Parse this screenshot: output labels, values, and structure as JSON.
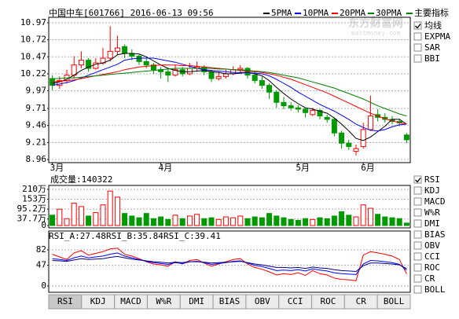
{
  "header": {
    "title": "中国中车[601766] 2016-06-13 09:56",
    "menu": "主要指标",
    "watermark": "东方财富网",
    "watermark_sub": "eastmoney.com"
  },
  "chart_data": [
    {
      "type": "candlestick",
      "up_color": "#ff0000",
      "down_color": "#009900",
      "grid": true,
      "categories": [
        "3月",
        null,
        null,
        null,
        null,
        null,
        null,
        null,
        null,
        null,
        null,
        null,
        null,
        null,
        null,
        "4月",
        null,
        null,
        null,
        null,
        null,
        null,
        null,
        null,
        null,
        null,
        null,
        null,
        null,
        null,
        null,
        null,
        null,
        null,
        "5月",
        null,
        null,
        null,
        null,
        null,
        null,
        null,
        null,
        "6月",
        null,
        null,
        null,
        null,
        null,
        null
      ],
      "ohlc": [
        [
          10.15,
          10.2,
          9.98,
          10.05
        ],
        [
          10.05,
          10.18,
          10.0,
          10.12
        ],
        [
          10.12,
          10.28,
          10.08,
          10.2
        ],
        [
          10.2,
          10.48,
          10.15,
          10.35
        ],
        [
          10.35,
          10.55,
          10.3,
          10.42
        ],
        [
          10.42,
          10.45,
          10.25,
          10.3
        ],
        [
          10.3,
          10.45,
          10.28,
          10.38
        ],
        [
          10.38,
          10.6,
          10.35,
          10.45
        ],
        [
          10.45,
          10.92,
          10.4,
          10.55
        ],
        [
          10.55,
          10.78,
          10.5,
          10.6
        ],
        [
          10.62,
          10.65,
          10.45,
          10.52
        ],
        [
          10.52,
          10.58,
          10.42,
          10.48
        ],
        [
          10.48,
          10.5,
          10.35,
          10.4
        ],
        [
          10.4,
          10.46,
          10.3,
          10.35
        ],
        [
          10.35,
          10.38,
          10.22,
          10.28
        ],
        [
          10.28,
          10.32,
          10.15,
          10.25
        ],
        [
          10.25,
          10.3,
          10.1,
          10.2
        ],
        [
          10.2,
          10.35,
          10.18,
          10.28
        ],
        [
          10.28,
          10.32,
          10.18,
          10.22
        ],
        [
          10.22,
          10.38,
          10.2,
          10.3
        ],
        [
          10.3,
          10.4,
          10.25,
          10.32
        ],
        [
          10.32,
          10.35,
          10.2,
          10.25
        ],
        [
          10.25,
          10.28,
          10.1,
          10.15
        ],
        [
          10.15,
          10.25,
          10.12,
          10.18
        ],
        [
          10.18,
          10.28,
          10.15,
          10.22
        ],
        [
          10.22,
          10.33,
          10.2,
          10.28
        ],
        [
          10.28,
          10.35,
          10.22,
          10.3
        ],
        [
          10.3,
          10.32,
          10.15,
          10.2
        ],
        [
          10.2,
          10.25,
          10.08,
          10.12
        ],
        [
          10.12,
          10.18,
          10.0,
          10.05
        ],
        [
          10.05,
          10.08,
          9.85,
          9.95
        ],
        [
          9.95,
          9.98,
          9.72,
          9.8
        ],
        [
          9.8,
          9.88,
          9.7,
          9.75
        ],
        [
          9.75,
          9.8,
          9.68,
          9.72
        ],
        [
          9.72,
          9.76,
          9.65,
          9.7
        ],
        [
          9.7,
          9.72,
          9.58,
          9.65
        ],
        [
          9.62,
          9.72,
          9.6,
          9.68
        ],
        [
          9.68,
          9.7,
          9.55,
          9.6
        ],
        [
          9.58,
          9.62,
          9.5,
          9.55
        ],
        [
          9.55,
          9.58,
          9.3,
          9.35
        ],
        [
          9.35,
          9.38,
          9.12,
          9.2
        ],
        [
          9.2,
          9.25,
          9.1,
          9.15
        ],
        [
          9.08,
          9.18,
          9.02,
          9.12
        ],
        [
          9.15,
          9.5,
          9.12,
          9.4
        ],
        [
          9.4,
          9.9,
          9.38,
          9.6
        ],
        [
          9.62,
          9.7,
          9.52,
          9.58
        ],
        [
          9.58,
          9.64,
          9.5,
          9.55
        ],
        [
          9.55,
          9.6,
          9.48,
          9.52
        ],
        [
          9.52,
          9.56,
          9.45,
          9.5
        ],
        [
          9.32,
          9.35,
          9.2,
          9.25
        ]
      ],
      "series": [
        {
          "name": "5PMA",
          "color": "#000000",
          "values": [
            10.08,
            10.1,
            10.14,
            10.2,
            10.27,
            10.32,
            10.36,
            10.38,
            10.42,
            10.5,
            10.52,
            10.52,
            10.51,
            10.47,
            10.41,
            10.35,
            10.3,
            10.27,
            10.25,
            10.25,
            10.26,
            10.27,
            10.25,
            10.24,
            10.22,
            10.22,
            10.23,
            10.24,
            10.22,
            10.19,
            10.12,
            10.02,
            9.93,
            9.85,
            9.78,
            9.72,
            9.7,
            9.67,
            9.64,
            9.57,
            9.48,
            9.38,
            9.27,
            9.24,
            9.29,
            9.37,
            9.45,
            9.55,
            9.55,
            9.48
          ]
        },
        {
          "name": "10PMA",
          "color": "#0000ff",
          "values": [
            10.05,
            10.07,
            10.09,
            10.12,
            10.16,
            10.2,
            10.24,
            10.28,
            10.32,
            10.36,
            10.42,
            10.44,
            10.45,
            10.45,
            10.45,
            10.43,
            10.41,
            10.39,
            10.36,
            10.33,
            10.3,
            10.28,
            10.27,
            10.26,
            10.25,
            10.24,
            10.24,
            10.24,
            10.23,
            10.22,
            10.19,
            10.14,
            10.08,
            10.02,
            9.95,
            9.89,
            9.83,
            9.77,
            9.72,
            9.67,
            9.61,
            9.55,
            9.48,
            9.43,
            9.39,
            9.38,
            9.4,
            9.44,
            9.47,
            9.48
          ]
        },
        {
          "name": "20PMA",
          "color": "#ff0000",
          "values": [
            10.1,
            10.11,
            10.12,
            10.13,
            10.15,
            10.17,
            10.19,
            10.21,
            10.23,
            10.25,
            10.28,
            10.3,
            10.32,
            10.33,
            10.34,
            10.35,
            10.35,
            10.35,
            10.34,
            10.34,
            10.33,
            10.32,
            10.31,
            10.3,
            10.29,
            10.28,
            10.27,
            10.26,
            10.25,
            10.24,
            10.22,
            10.2,
            10.17,
            10.14,
            10.1,
            10.06,
            10.02,
            9.98,
            9.94,
            9.89,
            9.84,
            9.79,
            9.74,
            9.69,
            9.64,
            9.6,
            9.56,
            9.53,
            9.5,
            9.48
          ]
        },
        {
          "name": "30PMA",
          "color": "#008000",
          "values": [
            10.15,
            10.15,
            10.16,
            10.16,
            10.17,
            10.18,
            10.19,
            10.2,
            10.21,
            10.22,
            10.23,
            10.24,
            10.25,
            10.26,
            10.27,
            10.28,
            10.29,
            10.3,
            10.3,
            10.3,
            10.3,
            10.3,
            10.3,
            10.29,
            10.29,
            10.28,
            10.28,
            10.27,
            10.26,
            10.25,
            10.24,
            10.22,
            10.2,
            10.18,
            10.16,
            10.13,
            10.1,
            10.07,
            10.04,
            10.01,
            9.97,
            9.93,
            9.89,
            9.85,
            9.8,
            9.75,
            9.71,
            9.67,
            9.63,
            9.6
          ]
        }
      ],
      "ylim": [
        8.96,
        10.97
      ],
      "yticks": [
        10.97,
        10.72,
        10.47,
        10.22,
        9.97,
        9.71,
        9.46,
        9.21,
        8.96
      ]
    },
    {
      "type": "bar",
      "title": "成交量:140322",
      "grid": true,
      "values": [
        60,
        95,
        40,
        130,
        110,
        55,
        75,
        120,
        200,
        165,
        70,
        55,
        45,
        70,
        40,
        50,
        35,
        60,
        40,
        55,
        65,
        40,
        45,
        35,
        50,
        45,
        55,
        40,
        50,
        45,
        70,
        55,
        45,
        35,
        30,
        40,
        35,
        45,
        40,
        55,
        80,
        60,
        50,
        120,
        100,
        65,
        50,
        45,
        40,
        14.03
      ],
      "ylim": [
        0,
        210
      ],
      "yticks": [
        {
          "value": 210,
          "label": "210万"
        },
        {
          "value": 153,
          "label": "153万"
        },
        {
          "value": 95.2,
          "label": "95.2万"
        },
        {
          "value": 37.7,
          "label": "37.7万"
        },
        0
      ]
    },
    {
      "type": "line",
      "grid": true,
      "legend_labels": [
        "RSI_A:27.48",
        "RSI_B:35.84",
        "RSI_C:39.41"
      ],
      "series": [
        {
          "name": "RSI_A",
          "color": "#ff0000",
          "values": [
            72,
            66,
            60,
            75,
            80,
            70,
            74,
            78,
            84,
            86,
            72,
            68,
            62,
            55,
            50,
            48,
            45,
            55,
            50,
            58,
            60,
            52,
            45,
            50,
            55,
            60,
            62,
            50,
            42,
            38,
            32,
            25,
            28,
            26,
            30,
            24,
            35,
            28,
            25,
            18,
            15,
            14,
            12,
            70,
            78,
            75,
            72,
            68,
            60,
            27.48
          ]
        },
        {
          "name": "RSI_B",
          "color": "#0000ff",
          "values": [
            62,
            60,
            58,
            64,
            68,
            64,
            66,
            68,
            72,
            75,
            68,
            64,
            60,
            56,
            53,
            51,
            49,
            53,
            51,
            55,
            56,
            53,
            49,
            51,
            53,
            56,
            57,
            52,
            47,
            44,
            40,
            35,
            36,
            35,
            37,
            34,
            39,
            36,
            34,
            30,
            28,
            27,
            26,
            50,
            58,
            57,
            55,
            53,
            49,
            35.84
          ]
        },
        {
          "name": "RSI_C",
          "color": "#000080",
          "values": [
            58,
            57,
            56,
            59,
            62,
            60,
            61,
            62,
            65,
            67,
            64,
            61,
            59,
            57,
            55,
            54,
            52,
            54,
            53,
            55,
            55,
            54,
            52,
            53,
            54,
            55,
            56,
            53,
            50,
            48,
            45,
            42,
            42,
            41,
            42,
            40,
            43,
            41,
            40,
            37,
            35,
            34,
            33,
            46,
            52,
            52,
            51,
            50,
            48,
            39.41
          ]
        }
      ],
      "ylim": [
        -14,
        121
      ],
      "yticks": [
        82,
        47,
        0
      ]
    }
  ],
  "overlay_options": [
    {
      "label": "均线",
      "checked": true
    },
    {
      "label": "EXPMA",
      "checked": false
    },
    {
      "label": "SAR",
      "checked": false
    },
    {
      "label": "BBI",
      "checked": false
    }
  ],
  "indicator_options": [
    {
      "label": "RSI",
      "checked": true
    },
    {
      "label": "KDJ",
      "checked": false
    },
    {
      "label": "MACD",
      "checked": false
    },
    {
      "label": "W%R",
      "checked": false
    },
    {
      "label": "DMI",
      "checked": false
    },
    {
      "label": "BIAS",
      "checked": false
    },
    {
      "label": "OBV",
      "checked": false
    },
    {
      "label": "CCI",
      "checked": false
    },
    {
      "label": "ROC",
      "checked": false
    },
    {
      "label": "CR",
      "checked": false
    },
    {
      "label": "BOLL",
      "checked": false
    }
  ],
  "tabs": {
    "items": [
      "RSI",
      "KDJ",
      "MACD",
      "W%R",
      "DMI",
      "BIAS",
      "OBV",
      "CCI",
      "ROC",
      "CR",
      "BOLL"
    ],
    "active": 0
  }
}
